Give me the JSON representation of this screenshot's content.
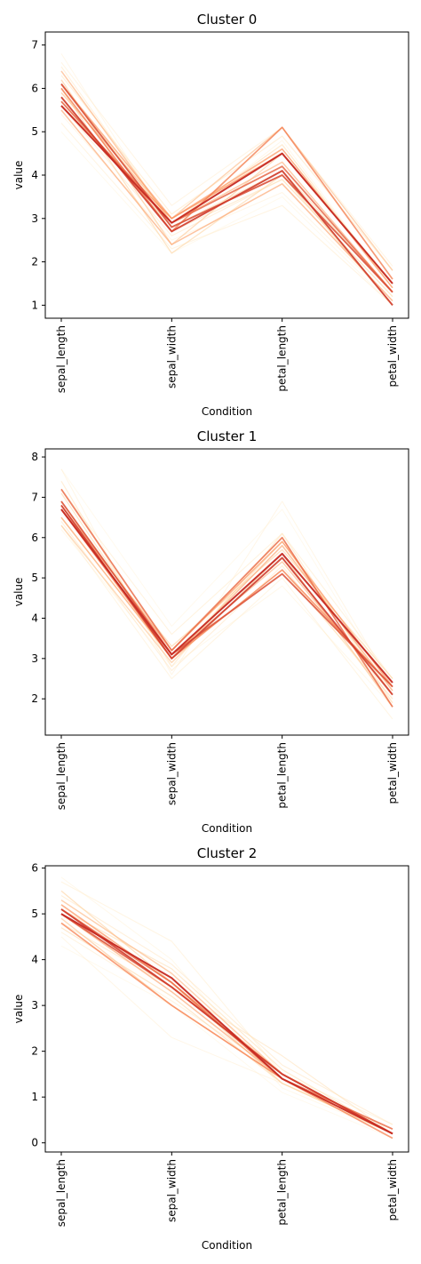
{
  "chart_data": [
    {
      "type": "line",
      "title": "Cluster 0",
      "xlabel": "Condition",
      "ylabel": "value",
      "categories": [
        "sepal_length",
        "sepal_width",
        "petal_length",
        "petal_width"
      ],
      "ylim": [
        0.7,
        7.3
      ],
      "yticks": [
        1,
        2,
        3,
        4,
        5,
        6,
        7
      ],
      "grid": false,
      "colormap": [
        "#fff3d6",
        "#fdd49e",
        "#fc8d59",
        "#c62a22"
      ],
      "series": [
        {
          "values": [
            5.0,
            2.2,
            3.5,
            1.0
          ],
          "level": 0.05
        },
        {
          "values": [
            6.8,
            2.8,
            4.8,
            1.4
          ],
          "level": 0.08
        },
        {
          "values": [
            5.4,
            2.5,
            3.6,
            1.1
          ],
          "level": 0.1
        },
        {
          "values": [
            6.6,
            3.3,
            5.1,
            1.9
          ],
          "level": 0.12
        },
        {
          "values": [
            5.2,
            2.3,
            3.3,
            1.0
          ],
          "level": 0.15
        },
        {
          "values": [
            6.5,
            2.9,
            4.6,
            1.5
          ],
          "level": 0.18
        },
        {
          "values": [
            5.6,
            2.6,
            3.9,
            1.2
          ],
          "level": 0.2
        },
        {
          "values": [
            6.3,
            3.1,
            4.9,
            1.8
          ],
          "level": 0.22
        },
        {
          "values": [
            5.8,
            2.7,
            3.9,
            1.2
          ],
          "level": 0.25
        },
        {
          "values": [
            6.1,
            2.9,
            4.7,
            1.4
          ],
          "level": 0.28
        },
        {
          "values": [
            5.7,
            2.8,
            4.1,
            1.3
          ],
          "level": 0.32
        },
        {
          "values": [
            6.0,
            2.2,
            4.0,
            1.0
          ],
          "level": 0.35
        },
        {
          "values": [
            6.2,
            2.4,
            4.5,
            1.5
          ],
          "level": 0.4
        },
        {
          "values": [
            5.9,
            3.0,
            5.1,
            1.8
          ],
          "level": 0.45
        },
        {
          "values": [
            6.4,
            2.9,
            4.3,
            1.3
          ],
          "level": 0.5
        },
        {
          "values": [
            5.5,
            2.4,
            3.8,
            1.1
          ],
          "level": 0.55
        },
        {
          "values": [
            6.1,
            3.0,
            4.6,
            1.4
          ],
          "level": 0.6
        },
        {
          "values": [
            5.6,
            3.0,
            4.5,
            1.5
          ],
          "level": 0.65
        },
        {
          "values": [
            6.0,
            2.7,
            5.1,
            1.6
          ],
          "level": 0.72
        },
        {
          "values": [
            5.7,
            2.9,
            4.2,
            1.3
          ],
          "level": 0.8
        },
        {
          "values": [
            6.1,
            2.8,
            4.0,
            1.3
          ],
          "level": 0.88
        },
        {
          "values": [
            5.8,
            2.7,
            4.1,
            1.0
          ],
          "level": 0.94
        },
        {
          "values": [
            5.6,
            2.9,
            4.5,
            1.5
          ],
          "level": 1.0
        }
      ]
    },
    {
      "type": "line",
      "title": "Cluster 1",
      "xlabel": "Condition",
      "ylabel": "value",
      "categories": [
        "sepal_length",
        "sepal_width",
        "petal_length",
        "petal_width"
      ],
      "ylim": [
        1.1,
        8.2
      ],
      "yticks": [
        2,
        3,
        4,
        5,
        6,
        7,
        8
      ],
      "grid": false,
      "colormap": [
        "#fff3d6",
        "#fdd49e",
        "#fc8d59",
        "#c62a22"
      ],
      "series": [
        {
          "values": [
            7.7,
            3.8,
            6.7,
            2.2
          ],
          "level": 0.04
        },
        {
          "values": [
            6.2,
            2.8,
            4.8,
            1.8
          ],
          "level": 0.07
        },
        {
          "values": [
            7.7,
            2.6,
            6.9,
            2.3
          ],
          "level": 0.1
        },
        {
          "values": [
            6.3,
            2.5,
            5.0,
            1.5
          ],
          "level": 0.13
        },
        {
          "values": [
            7.2,
            3.6,
            6.1,
            2.5
          ],
          "level": 0.16
        },
        {
          "values": [
            6.4,
            2.7,
            5.3,
            1.9
          ],
          "level": 0.2
        },
        {
          "values": [
            7.4,
            2.8,
            6.1,
            1.9
          ],
          "level": 0.24
        },
        {
          "values": [
            6.5,
            3.0,
            5.2,
            2.0
          ],
          "level": 0.28
        },
        {
          "values": [
            7.1,
            3.0,
            5.9,
            2.1
          ],
          "level": 0.32
        },
        {
          "values": [
            6.7,
            3.3,
            5.7,
            2.5
          ],
          "level": 0.36
        },
        {
          "values": [
            6.3,
            2.9,
            5.6,
            1.8
          ],
          "level": 0.42
        },
        {
          "values": [
            6.9,
            3.1,
            5.4,
            2.1
          ],
          "level": 0.48
        },
        {
          "values": [
            6.5,
            3.0,
            5.8,
            2.2
          ],
          "level": 0.55
        },
        {
          "values": [
            6.8,
            3.2,
            5.9,
            2.3
          ],
          "level": 0.62
        },
        {
          "values": [
            6.7,
            3.0,
            5.2,
            2.3
          ],
          "level": 0.7
        },
        {
          "values": [
            7.2,
            3.2,
            6.0,
            1.8
          ],
          "level": 0.78
        },
        {
          "values": [
            6.9,
            3.1,
            5.1,
            2.3
          ],
          "level": 0.86
        },
        {
          "values": [
            6.8,
            3.0,
            5.5,
            2.1
          ],
          "level": 0.93
        },
        {
          "values": [
            6.7,
            3.1,
            5.6,
            2.4
          ],
          "level": 1.0
        }
      ]
    },
    {
      "type": "line",
      "title": "Cluster 2",
      "xlabel": "Condition",
      "ylabel": "value",
      "categories": [
        "sepal_length",
        "sepal_width",
        "petal_length",
        "petal_width"
      ],
      "ylim": [
        -0.2,
        6.05
      ],
      "yticks": [
        0,
        1,
        2,
        3,
        4,
        5,
        6
      ],
      "grid": false,
      "colormap": [
        "#fff3d6",
        "#fdd49e",
        "#fc8d59",
        "#c62a22"
      ],
      "series": [
        {
          "values": [
            4.3,
            3.0,
            1.1,
            0.1
          ],
          "level": 0.04
        },
        {
          "values": [
            5.8,
            4.0,
            1.2,
            0.2
          ],
          "level": 0.07
        },
        {
          "values": [
            4.5,
            2.3,
            1.3,
            0.3
          ],
          "level": 0.1
        },
        {
          "values": [
            5.7,
            4.4,
            1.5,
            0.4
          ],
          "level": 0.13
        },
        {
          "values": [
            4.6,
            3.1,
            1.5,
            0.2
          ],
          "level": 0.16
        },
        {
          "values": [
            5.4,
            3.9,
            1.7,
            0.4
          ],
          "level": 0.2
        },
        {
          "values": [
            4.8,
            3.4,
            1.9,
            0.2
          ],
          "level": 0.24
        },
        {
          "values": [
            5.1,
            3.8,
            1.6,
            0.2
          ],
          "level": 0.28
        },
        {
          "values": [
            4.7,
            3.2,
            1.3,
            0.2
          ],
          "level": 0.32
        },
        {
          "values": [
            5.5,
            3.5,
            1.3,
            0.2
          ],
          "level": 0.36
        },
        {
          "values": [
            4.9,
            3.0,
            1.4,
            0.2
          ],
          "level": 0.42
        },
        {
          "values": [
            5.3,
            3.7,
            1.5,
            0.2
          ],
          "level": 0.48
        },
        {
          "values": [
            5.0,
            3.3,
            1.4,
            0.2
          ],
          "level": 0.55
        },
        {
          "values": [
            5.2,
            3.5,
            1.5,
            0.2
          ],
          "level": 0.62
        },
        {
          "values": [
            4.8,
            3.0,
            1.4,
            0.1
          ],
          "level": 0.7
        },
        {
          "values": [
            5.1,
            3.5,
            1.4,
            0.3
          ],
          "level": 0.78
        },
        {
          "values": [
            5.0,
            3.4,
            1.5,
            0.2
          ],
          "level": 0.86
        },
        {
          "values": [
            5.1,
            3.4,
            1.5,
            0.2
          ],
          "level": 0.93
        },
        {
          "values": [
            5.0,
            3.6,
            1.4,
            0.2
          ],
          "level": 1.0
        }
      ]
    }
  ]
}
